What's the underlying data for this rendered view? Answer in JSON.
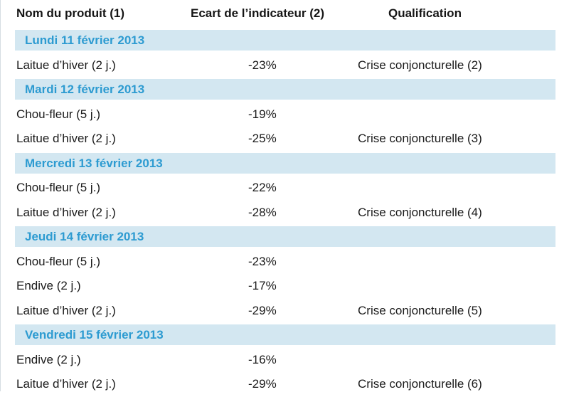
{
  "table": {
    "headers": [
      "Nom du produit (1)",
      "Ecart de l’indicateur (2)",
      "Qualification"
    ],
    "groups": [
      {
        "date": "Lundi 11 février 2013",
        "rows": [
          {
            "product": "Laitue d’hiver (2 j.)",
            "ecart": "-23%",
            "qualification": "Crise conjoncturelle (2)"
          }
        ]
      },
      {
        "date": "Mardi 12 février 2013",
        "rows": [
          {
            "product": "Chou-fleur (5 j.)",
            "ecart": "-19%",
            "qualification": ""
          },
          {
            "product": "Laitue d’hiver (2 j.)",
            "ecart": "-25%",
            "qualification": "Crise conjoncturelle (3)"
          }
        ]
      },
      {
        "date": "Mercredi 13 février 2013",
        "rows": [
          {
            "product": "Chou-fleur (5 j.)",
            "ecart": "-22%",
            "qualification": ""
          },
          {
            "product": "Laitue d’hiver (2 j.)",
            "ecart": "-28%",
            "qualification": "Crise conjoncturelle (4)"
          }
        ]
      },
      {
        "date": "Jeudi 14 février 2013",
        "rows": [
          {
            "product": "Chou-fleur (5 j.)",
            "ecart": "-23%",
            "qualification": ""
          },
          {
            "product": "Endive (2 j.)",
            "ecart": "-17%",
            "qualification": ""
          },
          {
            "product": "Laitue d’hiver (2 j.)",
            "ecart": "-29%",
            "qualification": "Crise conjoncturelle (5)"
          }
        ]
      },
      {
        "date": "Vendredi 15 février 2013",
        "rows": [
          {
            "product": "Endive (2 j.)",
            "ecart": "-16%",
            "qualification": ""
          },
          {
            "product": "Laitue d’hiver (2 j.)",
            "ecart": "-29%",
            "qualification": "Crise conjoncturelle (6)"
          }
        ]
      }
    ]
  },
  "colors": {
    "date_band": "#d3e7f1",
    "date_text": "#2d9bd1"
  }
}
